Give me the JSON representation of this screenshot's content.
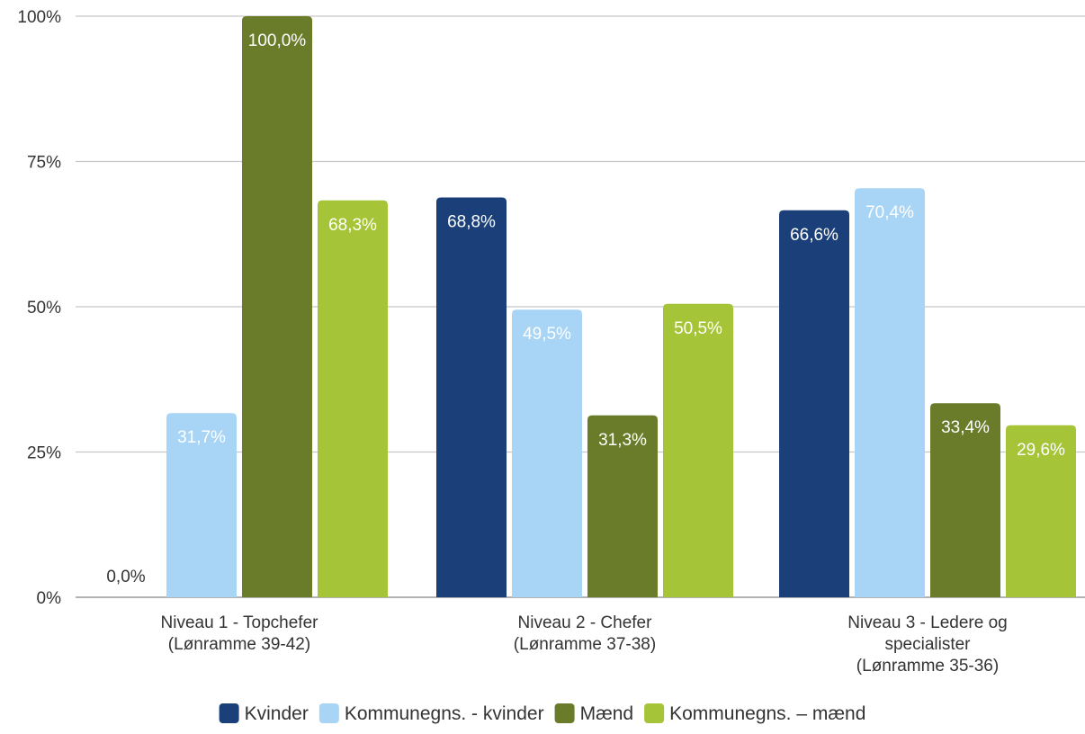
{
  "chart_data": {
    "type": "bar",
    "categories": [
      [
        "Niveau 1 - Topchefer",
        "(Lønramme 39-42)"
      ],
      [
        "Niveau 2 - Chefer",
        "(Lønramme 37-38)"
      ],
      [
        "Niveau 3 - Ledere og",
        "specialister",
        "(Lønramme 35-36)"
      ]
    ],
    "series": [
      {
        "name": "Kvinder",
        "color": "#1b3f79",
        "label_color": "#ffffff",
        "values": [
          0.0,
          68.8,
          66.6
        ],
        "labels": [
          "0,0%",
          "68,8%",
          "66,6%"
        ]
      },
      {
        "name": "Kommunegns. - kvinder",
        "color": "#a8d4f5",
        "label_color": "#ffffff",
        "values": [
          31.7,
          49.5,
          70.4
        ],
        "labels": [
          "31,7%",
          "49,5%",
          "70,4%"
        ]
      },
      {
        "name": "Mænd",
        "color": "#6a7c2a",
        "label_color": "#ffffff",
        "values": [
          100.0,
          31.3,
          33.4
        ],
        "labels": [
          "100,0%",
          "31,3%",
          "33,4%"
        ]
      },
      {
        "name": "Kommunegns. – mænd",
        "color": "#a6c437",
        "label_color": "#ffffff",
        "values": [
          68.3,
          50.5,
          29.6
        ],
        "labels": [
          "68,3%",
          "50,5%",
          "29,6%"
        ]
      }
    ],
    "yticks": [
      0,
      25,
      50,
      75,
      100
    ],
    "ytick_labels": [
      "0%",
      "25%",
      "50%",
      "75%",
      "100%"
    ],
    "ylim": [
      0,
      100
    ],
    "grid": true,
    "legend_position": "bottom",
    "title": "",
    "xlabel": "",
    "ylabel": ""
  }
}
